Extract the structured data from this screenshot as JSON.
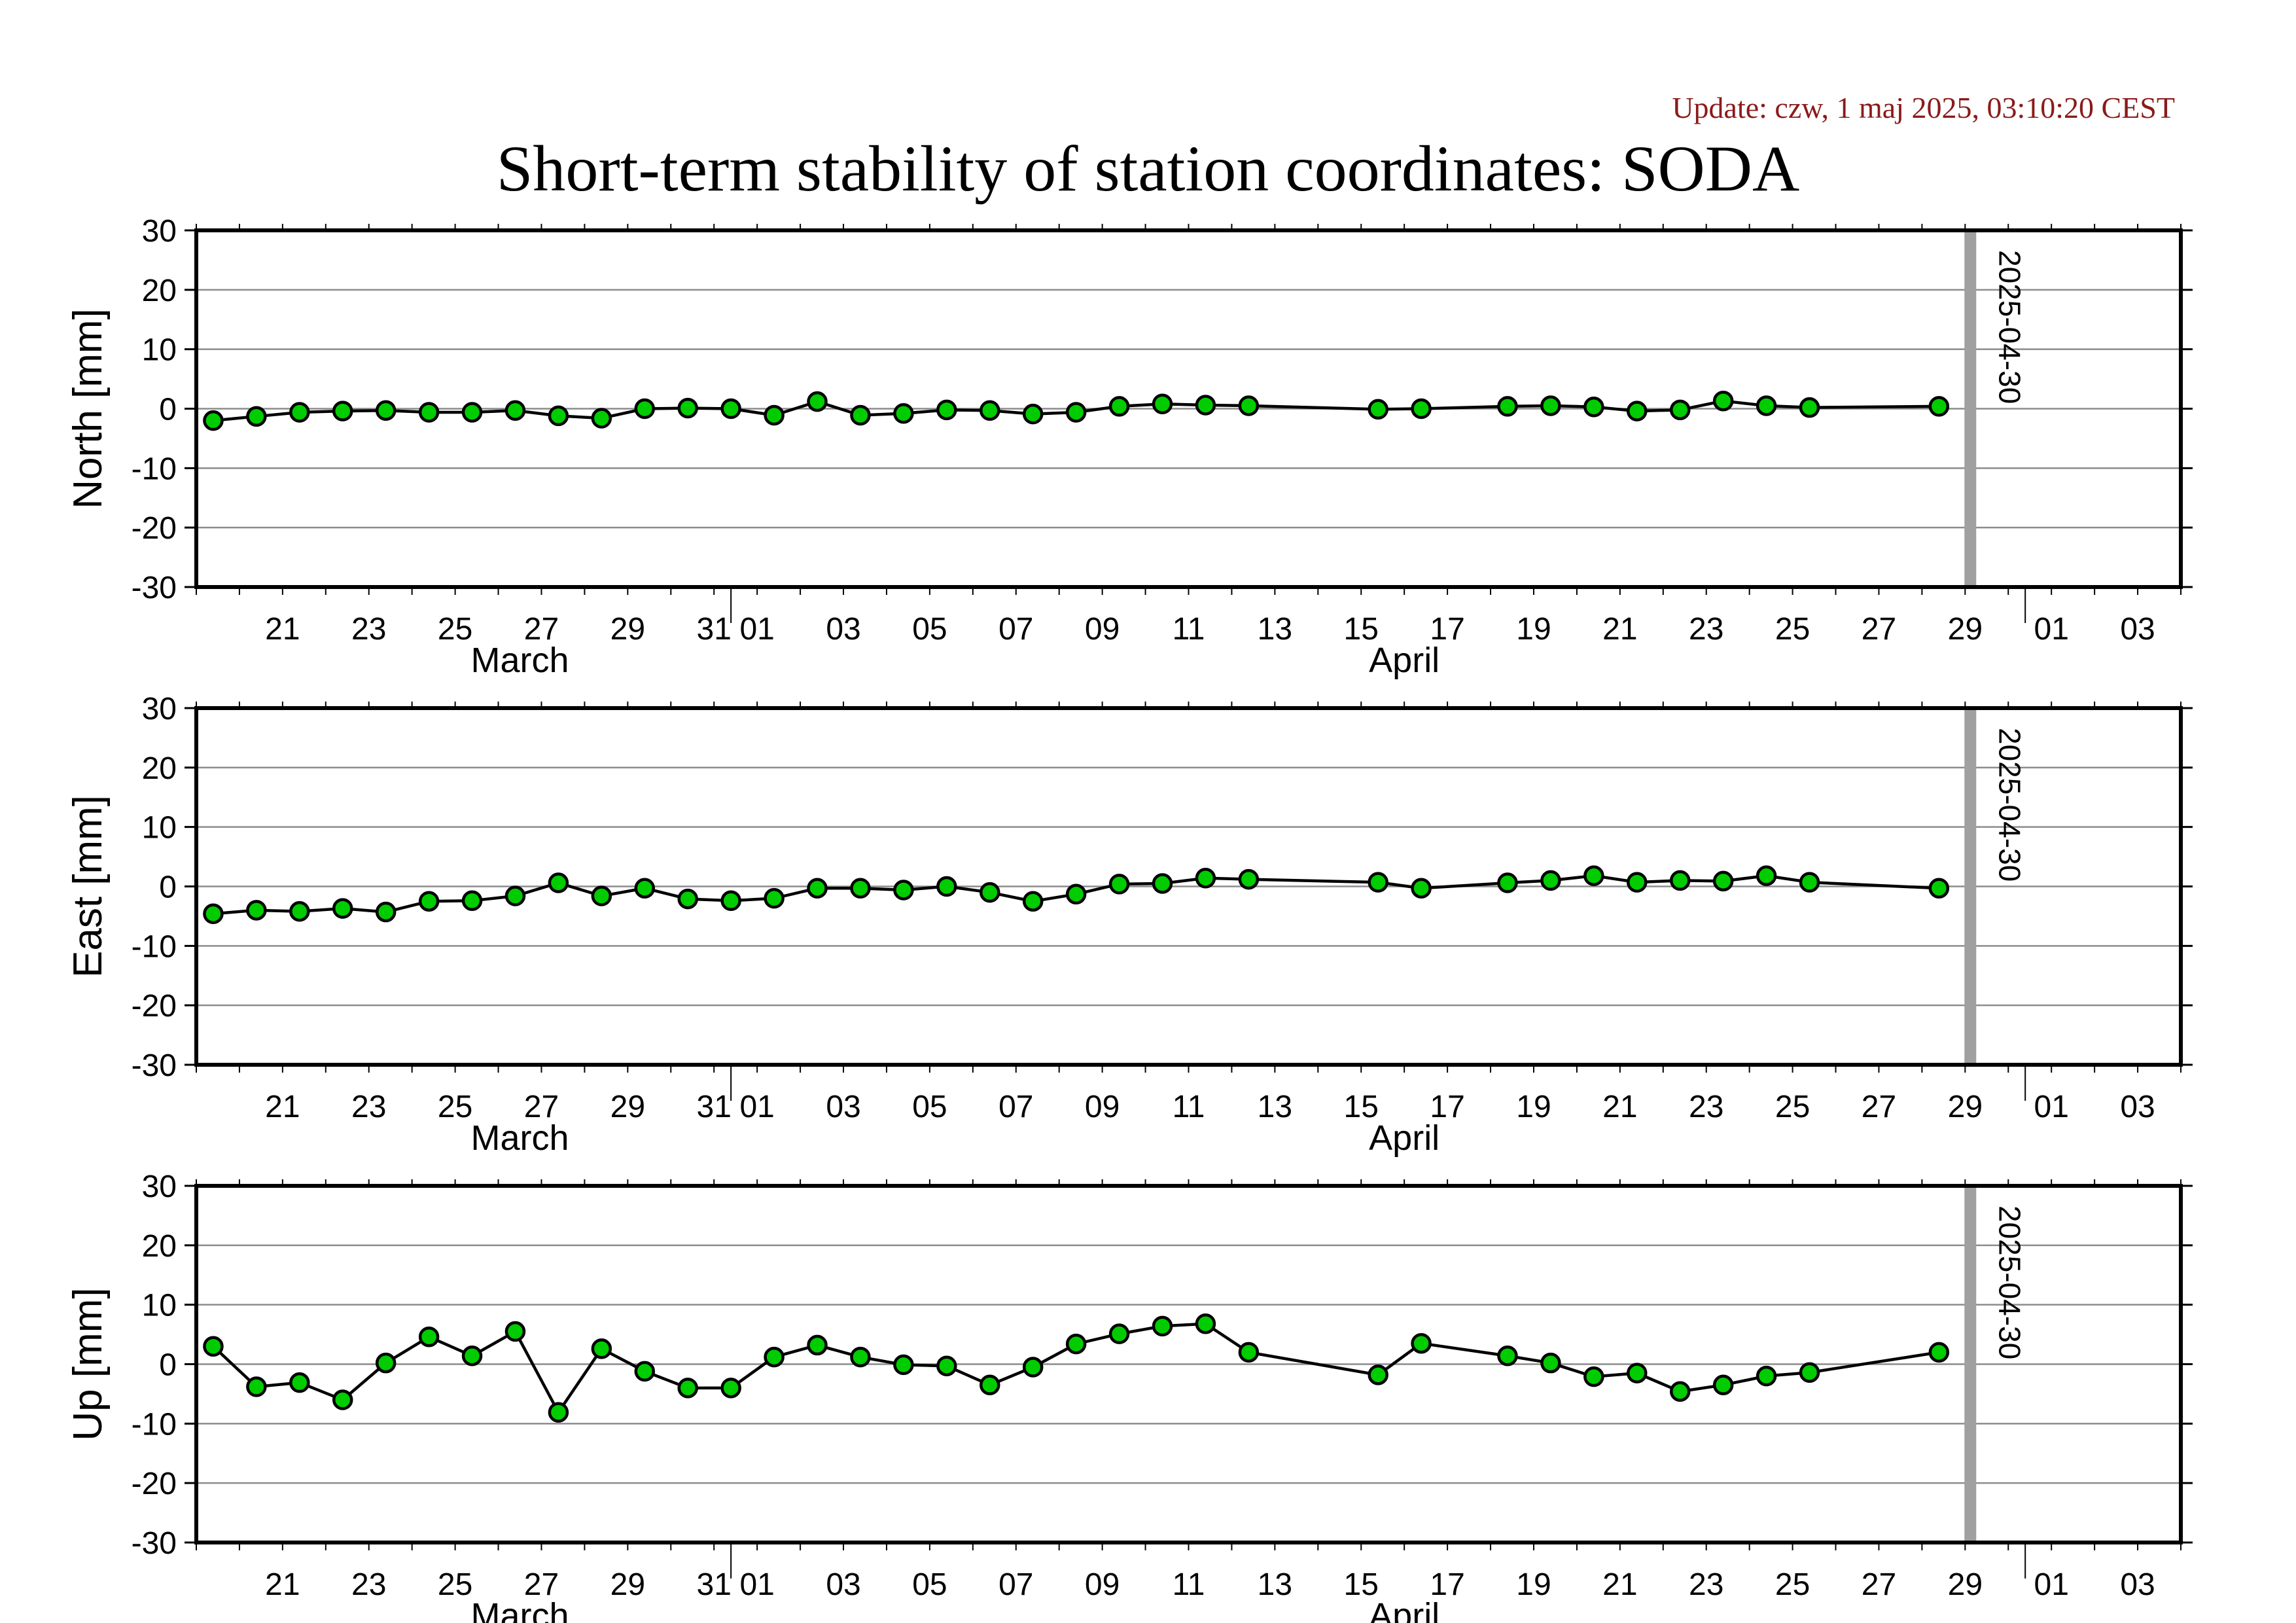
{
  "header": {
    "update": "Update: czw, 1 maj 2025, 03:10:20 CEST",
    "title": "Short-term stability of station coordinates: SODA"
  },
  "chart_data": [
    {
      "type": "scatter",
      "ylabel": "North [mm]",
      "ylim": [
        -30,
        30
      ],
      "yticks": [
        -30,
        -20,
        -10,
        0,
        10,
        20,
        30
      ],
      "xlim": [
        "2025-03-19",
        "2025-05-04"
      ],
      "xtick_labels": [
        "21",
        "23",
        "25",
        "27",
        "29",
        "31",
        "01",
        "03",
        "05",
        "07",
        "09",
        "11",
        "13",
        "15",
        "17",
        "19",
        "21",
        "23",
        "25",
        "27",
        "29",
        "01",
        "03"
      ],
      "months": [
        "March",
        "April"
      ],
      "marker_label": "2025-04-30",
      "grid": true,
      "point_color": "#00cc00",
      "series": [
        {
          "x": [
            "2025-03-20",
            "2025-03-21",
            "2025-03-22",
            "2025-03-23",
            "2025-03-24",
            "2025-03-25",
            "2025-03-26",
            "2025-03-27",
            "2025-03-28",
            "2025-03-29",
            "2025-03-30",
            "2025-03-31",
            "2025-04-01",
            "2025-04-02",
            "2025-04-03",
            "2025-04-04",
            "2025-04-05",
            "2025-04-06",
            "2025-04-07",
            "2025-04-08",
            "2025-04-09",
            "2025-04-10",
            "2025-04-11",
            "2025-04-12",
            "2025-04-13",
            "2025-04-16",
            "2025-04-17",
            "2025-04-19",
            "2025-04-20",
            "2025-04-21",
            "2025-04-22",
            "2025-04-23",
            "2025-04-24",
            "2025-04-25",
            "2025-04-26",
            "2025-04-29"
          ],
          "values": [
            -2.0,
            -1.3,
            -0.6,
            -0.4,
            -0.3,
            -0.6,
            -0.6,
            -0.3,
            -1.2,
            -1.6,
            0.0,
            0.1,
            0.0,
            -1.1,
            1.2,
            -1.1,
            -0.8,
            -0.2,
            -0.3,
            -0.9,
            -0.6,
            0.4,
            0.8,
            0.6,
            0.5,
            -0.1,
            0.0,
            0.4,
            0.5,
            0.3,
            -0.4,
            -0.2,
            1.3,
            0.5,
            0.2,
            0.4
          ]
        }
      ]
    },
    {
      "type": "scatter",
      "ylabel": "East [mm]",
      "ylim": [
        -30,
        30
      ],
      "yticks": [
        -30,
        -20,
        -10,
        0,
        10,
        20,
        30
      ],
      "xlim": [
        "2025-03-19",
        "2025-05-04"
      ],
      "xtick_labels": [
        "21",
        "23",
        "25",
        "27",
        "29",
        "31",
        "01",
        "03",
        "05",
        "07",
        "09",
        "11",
        "13",
        "15",
        "17",
        "19",
        "21",
        "23",
        "25",
        "27",
        "29",
        "01",
        "03"
      ],
      "months": [
        "March",
        "April"
      ],
      "marker_label": "2025-04-30",
      "grid": true,
      "point_color": "#00cc00",
      "series": [
        {
          "x": [
            "2025-03-20",
            "2025-03-21",
            "2025-03-22",
            "2025-03-23",
            "2025-03-24",
            "2025-03-25",
            "2025-03-26",
            "2025-03-27",
            "2025-03-28",
            "2025-03-29",
            "2025-03-30",
            "2025-03-31",
            "2025-04-01",
            "2025-04-02",
            "2025-04-03",
            "2025-04-04",
            "2025-04-05",
            "2025-04-06",
            "2025-04-07",
            "2025-04-08",
            "2025-04-09",
            "2025-04-10",
            "2025-04-11",
            "2025-04-12",
            "2025-04-13",
            "2025-04-16",
            "2025-04-17",
            "2025-04-19",
            "2025-04-20",
            "2025-04-21",
            "2025-04-22",
            "2025-04-23",
            "2025-04-24",
            "2025-04-25",
            "2025-04-26",
            "2025-04-29"
          ],
          "values": [
            -4.6,
            -4.0,
            -4.2,
            -3.7,
            -4.3,
            -2.5,
            -2.4,
            -1.6,
            0.6,
            -1.6,
            -0.3,
            -2.1,
            -2.4,
            -2.0,
            -0.3,
            -0.3,
            -0.6,
            0.0,
            -1.0,
            -2.5,
            -1.3,
            0.4,
            0.5,
            1.4,
            1.2,
            0.7,
            -0.3,
            0.6,
            1.0,
            1.8,
            0.7,
            1.0,
            0.9,
            1.8,
            0.7,
            -0.3
          ]
        }
      ]
    },
    {
      "type": "scatter",
      "ylabel": "Up [mm]",
      "ylim": [
        -30,
        30
      ],
      "yticks": [
        -30,
        -20,
        -10,
        0,
        10,
        20,
        30
      ],
      "xlim": [
        "2025-03-19",
        "2025-05-04"
      ],
      "xtick_labels": [
        "21",
        "23",
        "25",
        "27",
        "29",
        "31",
        "01",
        "03",
        "05",
        "07",
        "09",
        "11",
        "13",
        "15",
        "17",
        "19",
        "21",
        "23",
        "25",
        "27",
        "29",
        "01",
        "03"
      ],
      "months": [
        "March",
        "April"
      ],
      "marker_label": "2025-04-30",
      "grid": true,
      "point_color": "#00cc00",
      "series": [
        {
          "x": [
            "2025-03-20",
            "2025-03-21",
            "2025-03-22",
            "2025-03-23",
            "2025-03-24",
            "2025-03-25",
            "2025-03-26",
            "2025-03-27",
            "2025-03-28",
            "2025-03-29",
            "2025-03-30",
            "2025-03-31",
            "2025-04-01",
            "2025-04-02",
            "2025-04-03",
            "2025-04-04",
            "2025-04-05",
            "2025-04-06",
            "2025-04-07",
            "2025-04-08",
            "2025-04-09",
            "2025-04-10",
            "2025-04-11",
            "2025-04-12",
            "2025-04-13",
            "2025-04-16",
            "2025-04-17",
            "2025-04-19",
            "2025-04-20",
            "2025-04-21",
            "2025-04-22",
            "2025-04-23",
            "2025-04-24",
            "2025-04-25",
            "2025-04-26",
            "2025-04-29"
          ],
          "values": [
            3.0,
            -3.8,
            -3.1,
            -6.0,
            0.2,
            4.6,
            1.4,
            5.5,
            -8.1,
            2.6,
            -1.2,
            -4.0,
            -4.0,
            1.2,
            3.2,
            1.2,
            -0.1,
            -0.3,
            -3.5,
            -0.5,
            3.4,
            5.1,
            6.4,
            6.8,
            2.0,
            -1.8,
            3.5,
            1.4,
            0.2,
            -2.1,
            -1.5,
            -4.6,
            -3.5,
            -2.0,
            -1.4,
            2.0
          ]
        }
      ]
    }
  ]
}
